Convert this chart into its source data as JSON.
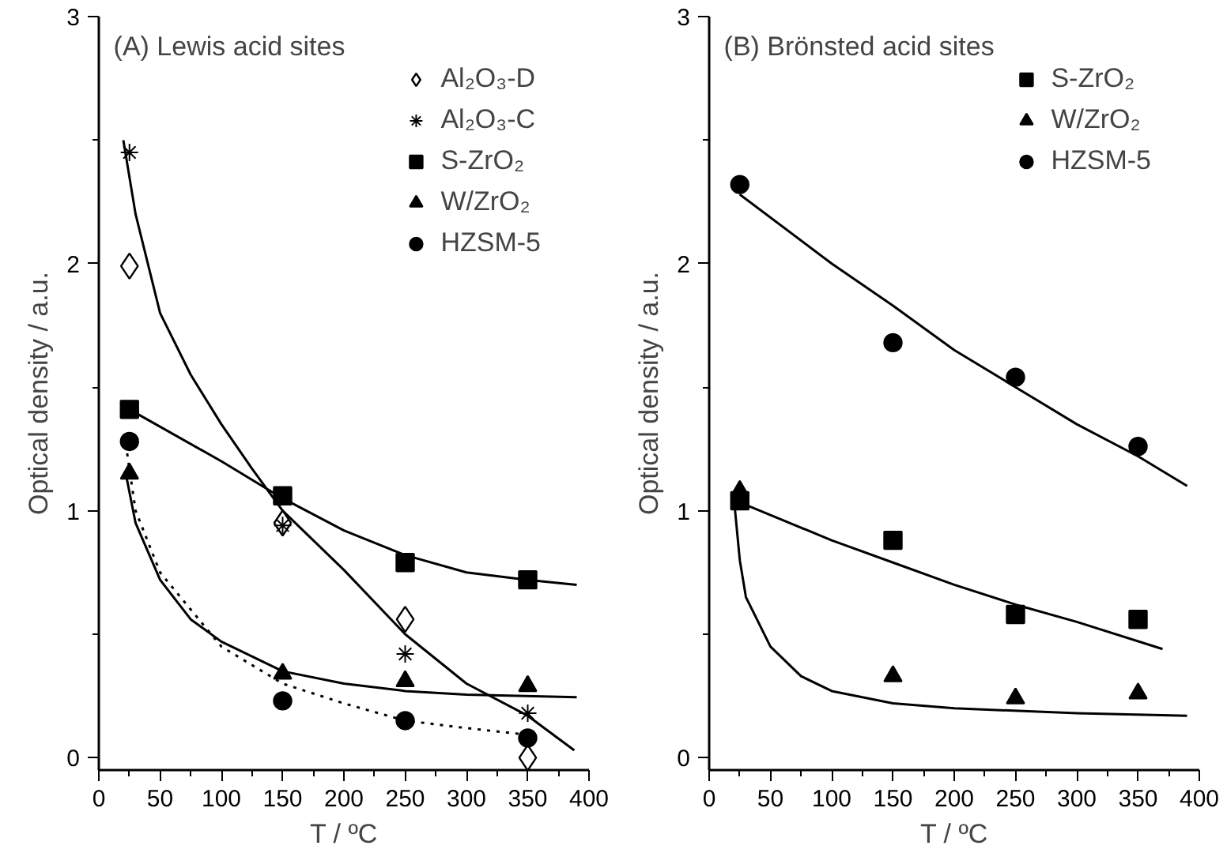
{
  "chart_data": [
    {
      "type": "scatter",
      "title": "(A)   Lewis acid sites",
      "xlabel": "T / ºC",
      "ylabel": "Optical density / a.u.",
      "xlim": [
        0,
        400
      ],
      "ylim": [
        -0.05,
        3
      ],
      "xticks": [
        0,
        {
          "value": 25,
          "label": null
        },
        50,
        {
          "value": 75,
          "label": null
        },
        100,
        {
          "value": 125,
          "label": null
        },
        150,
        {
          "value": 175,
          "label": null
        },
        200,
        {
          "value": 225,
          "label": null
        },
        250,
        {
          "value": 275,
          "label": null
        },
        300,
        {
          "value": 325,
          "label": null
        },
        350,
        {
          "value": 375,
          "label": null
        },
        400
      ],
      "yticks": [
        0,
        {
          "value": 0.5,
          "label": null
        },
        1,
        {
          "value": 1.5,
          "label": null
        },
        2,
        {
          "value": 2.5,
          "label": null
        },
        3
      ],
      "grid": false,
      "legend": "top right",
      "series": [
        {
          "name": "Al₂O₃-D",
          "color": "#000000",
          "marker": "diamond",
          "x": [
            25,
            150,
            250,
            350
          ],
          "values": [
            1.99,
            0.95,
            0.56,
            0.0
          ]
        },
        {
          "name": "Al₂O₃-C",
          "color": "#000000",
          "marker": "cross",
          "x": [
            25,
            150,
            250,
            350
          ],
          "values": [
            2.45,
            0.94,
            0.42,
            0.18
          ]
        },
        {
          "name": "S-ZrO₂",
          "color": "#000000",
          "marker": "square",
          "x": [
            25,
            150,
            250,
            350
          ],
          "values": [
            1.41,
            1.06,
            0.79,
            0.72
          ]
        },
        {
          "name": "W/ZrO₂",
          "color": "#000000",
          "marker": "triangle",
          "x": [
            25,
            150,
            250,
            350
          ],
          "values": [
            1.15,
            0.34,
            0.31,
            0.29
          ]
        },
        {
          "name": "HZSM-5",
          "color": "#000000",
          "marker": "circle",
          "x": [
            25,
            150,
            250,
            350
          ],
          "values": [
            1.28,
            0.23,
            0.15,
            0.08
          ]
        },
        {
          "type": "line",
          "color": "#000000",
          "marker": "none",
          "line_style": "solid",
          "x": [
            20,
            30,
            50,
            75,
            100,
            125,
            150,
            200,
            250,
            300,
            350,
            388
          ],
          "values": [
            2.5,
            2.2,
            1.8,
            1.55,
            1.35,
            1.17,
            1.0,
            0.76,
            0.5,
            0.3,
            0.17,
            0.03
          ]
        },
        {
          "type": "line",
          "color": "#000000",
          "marker": "none",
          "line_style": "solid",
          "x": [
            25,
            100,
            150,
            200,
            250,
            300,
            350,
            390
          ],
          "values": [
            1.41,
            1.2,
            1.05,
            0.92,
            0.82,
            0.75,
            0.72,
            0.7
          ]
        },
        {
          "type": "line",
          "color": "#000000",
          "marker": "none",
          "line_style": "solid",
          "x": [
            22,
            30,
            50,
            75,
            100,
            150,
            200,
            250,
            300,
            390
          ],
          "values": [
            1.15,
            0.95,
            0.72,
            0.56,
            0.47,
            0.35,
            0.3,
            0.27,
            0.255,
            0.245
          ]
        },
        {
          "type": "line",
          "color": "#000000",
          "marker": "none",
          "line_style": "dotted",
          "x": [
            22,
            30,
            50,
            75,
            100,
            150,
            200,
            250,
            300,
            355
          ],
          "values": [
            1.27,
            1.0,
            0.75,
            0.6,
            0.45,
            0.3,
            0.22,
            0.15,
            0.12,
            0.09
          ]
        }
      ]
    },
    {
      "type": "scatter",
      "title": "(B)   Brönsted acid sites",
      "xlabel": "T / ºC",
      "ylabel": "Optical density / a.u.",
      "xlim": [
        0,
        400
      ],
      "ylim": [
        -0.05,
        3
      ],
      "xticks": [
        0,
        {
          "value": 25,
          "label": null
        },
        50,
        {
          "value": 75,
          "label": null
        },
        100,
        {
          "value": 125,
          "label": null
        },
        150,
        {
          "value": 175,
          "label": null
        },
        200,
        {
          "value": 225,
          "label": null
        },
        250,
        {
          "value": 275,
          "label": null
        },
        300,
        {
          "value": 325,
          "label": null
        },
        350,
        {
          "value": 375,
          "label": null
        },
        400
      ],
      "yticks": [
        0,
        {
          "value": 0.5,
          "label": null
        },
        1,
        {
          "value": 1.5,
          "label": null
        },
        2,
        {
          "value": 2.5,
          "label": null
        },
        3
      ],
      "grid": false,
      "legend": "top right",
      "series": [
        {
          "name": "S-ZrO₂",
          "color": "#000000",
          "marker": "square",
          "x": [
            25,
            150,
            250,
            350
          ],
          "values": [
            1.04,
            0.88,
            0.58,
            0.56
          ]
        },
        {
          "name": "W/ZrO₂",
          "color": "#000000",
          "marker": "triangle",
          "x": [
            25,
            150,
            250,
            350
          ],
          "values": [
            1.08,
            0.33,
            0.24,
            0.26
          ]
        },
        {
          "name": "HZSM-5",
          "color": "#000000",
          "marker": "circle",
          "x": [
            25,
            150,
            250,
            350
          ],
          "values": [
            2.32,
            1.68,
            1.54,
            1.26
          ]
        },
        {
          "type": "line",
          "color": "#000000",
          "marker": "none",
          "line_style": "solid",
          "x": [
            25,
            100,
            150,
            200,
            250,
            300,
            350,
            390
          ],
          "values": [
            2.28,
            2.0,
            1.83,
            1.65,
            1.5,
            1.35,
            1.22,
            1.1
          ]
        },
        {
          "type": "line",
          "color": "#000000",
          "marker": "none",
          "line_style": "solid",
          "x": [
            22,
            100,
            150,
            200,
            250,
            300,
            370
          ],
          "values": [
            1.04,
            0.88,
            0.79,
            0.7,
            0.62,
            0.55,
            0.44
          ]
        },
        {
          "type": "line",
          "color": "#000000",
          "marker": "none",
          "line_style": "solid",
          "x": [
            20,
            25,
            30,
            50,
            75,
            100,
            150,
            200,
            300,
            390
          ],
          "values": [
            1.06,
            0.8,
            0.65,
            0.45,
            0.33,
            0.27,
            0.22,
            0.2,
            0.18,
            0.17
          ]
        }
      ]
    }
  ]
}
